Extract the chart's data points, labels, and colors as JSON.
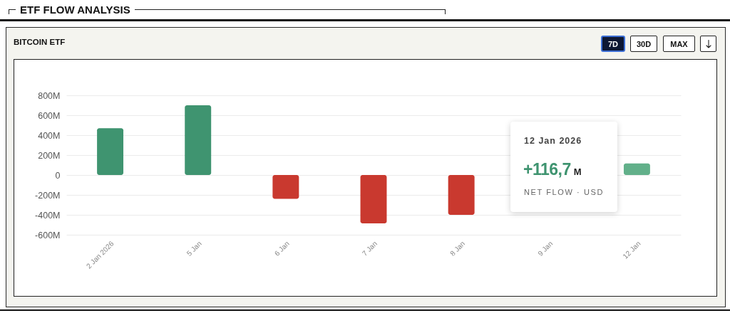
{
  "chart_data": {
    "type": "bar",
    "title": "ETF FLOW ANALYSIS",
    "subtitle": "BITCOIN ETF",
    "categories": [
      "2 Jan 2026",
      "5 Jan",
      "6 Jan",
      "7 Jan",
      "8 Jan",
      "9 Jan",
      "12 Jan"
    ],
    "values": [
      470,
      700,
      -240,
      -485,
      -400,
      null,
      116.7
    ],
    "colors": [
      "#3f9470",
      "#3f9470",
      "#c9392f",
      "#c9392f",
      "#c9392f",
      null,
      "#62b08a"
    ],
    "ylim": [
      -600,
      800
    ],
    "yticks": [
      {
        "value": -600,
        "label": "-600M"
      },
      {
        "value": -400,
        "label": "-400M"
      },
      {
        "value": -200,
        "label": "-200M"
      },
      0,
      {
        "value": 200,
        "label": "200M"
      },
      {
        "value": 400,
        "label": "400M"
      },
      {
        "value": 600,
        "label": "600M"
      },
      {
        "value": 800,
        "label": "800M"
      }
    ],
    "grid": "y",
    "annotations": [
      "7D",
      "30D",
      "MAX",
      "12 Jan 2026",
      "+116,7",
      "M",
      "NET FLOW · USD"
    ]
  }
}
